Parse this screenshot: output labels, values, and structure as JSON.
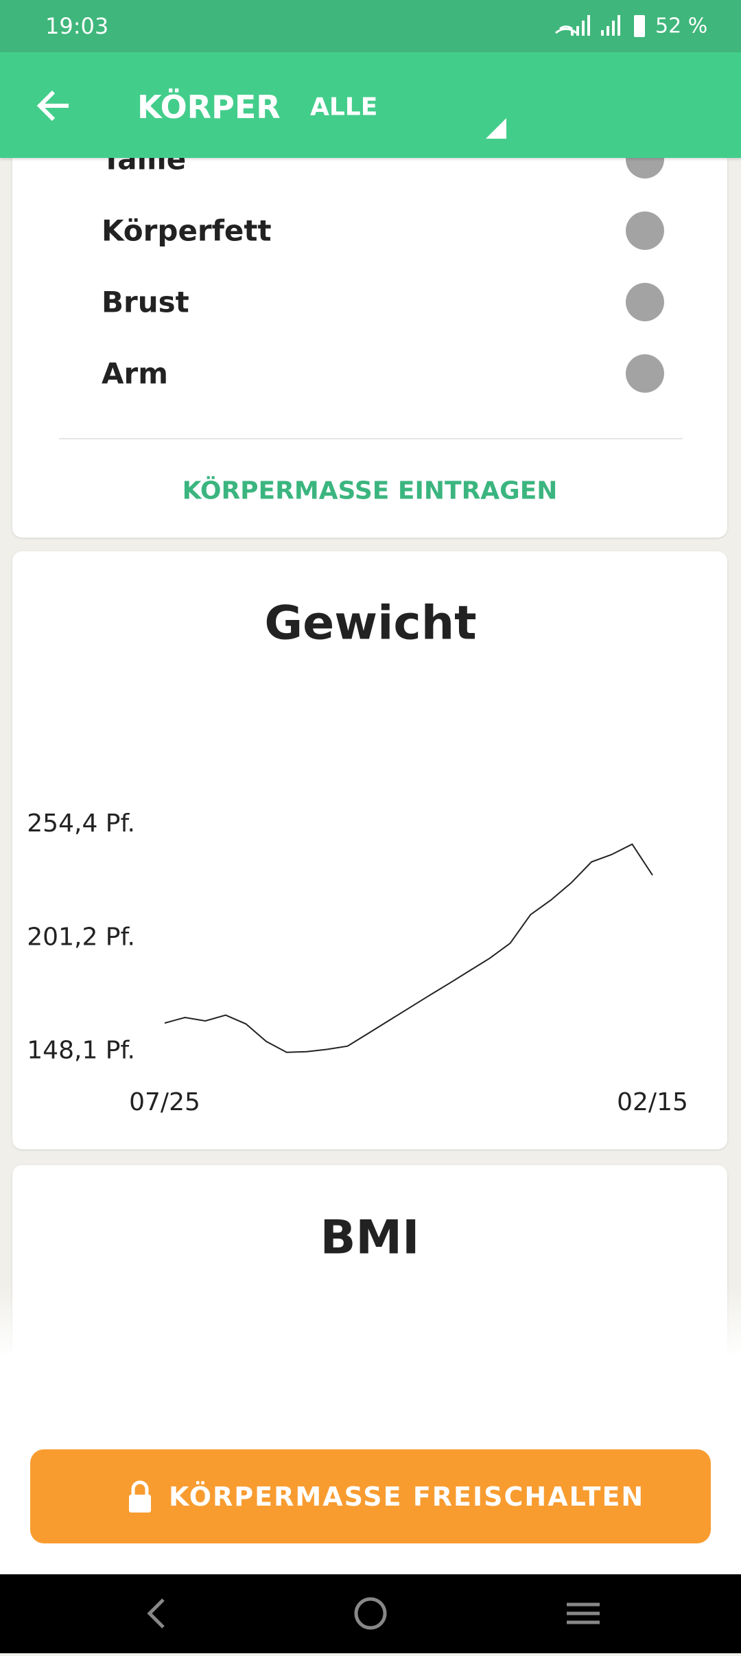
{
  "status_bar": {
    "time": "19:03",
    "battery": "52 %"
  },
  "app_bar": {
    "title": "KÖRPER",
    "filter": "ALLE"
  },
  "measurements": {
    "items": [
      "Taille",
      "Körperfett",
      "Brust",
      "Arm"
    ],
    "action": "KÖRPERMASSE EINTRAGEN"
  },
  "weight_card": {
    "chart_data": {
      "type": "line",
      "title": "Gewicht",
      "categories": [
        "07/25",
        null,
        null,
        null,
        null,
        null,
        null,
        null,
        null,
        null,
        null,
        null,
        null,
        null,
        null,
        null,
        null,
        null,
        null,
        null,
        null,
        null,
        null,
        null,
        "02/15"
      ],
      "values": [
        161.4,
        164.0,
        162.4,
        165.1,
        161.0,
        152.8,
        147.7,
        148.0,
        149.1,
        150.6,
        156.5,
        162.4,
        168.3,
        174.2,
        180.0,
        185.9,
        191.8,
        198.8,
        212.2,
        219.0,
        227.1,
        236.9,
        240.4,
        245.2,
        230.7
      ],
      "color": "#222222",
      "ylim": [
        146,
        256
      ],
      "yticks": [
        {
          "value": 148.1,
          "label": "148,1 Pf."
        },
        {
          "value": 201.2,
          "label": "201,2 Pf."
        },
        {
          "value": 254.4,
          "label": "254,4 Pf."
        }
      ],
      "grid": false
    }
  },
  "bmi_card": {
    "title": "BMI"
  },
  "unlock_button": "KÖRPERMASSE FREISCHALTEN"
}
